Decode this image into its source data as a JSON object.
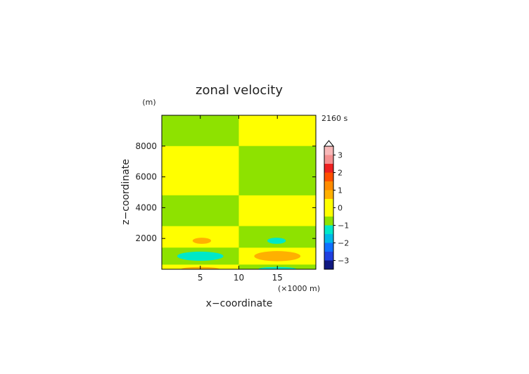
{
  "chart_data": {
    "type": "heatmap",
    "title": "zonal velocity",
    "xlabel": "x−coordinate",
    "ylabel": "z−coordinate",
    "x_unit": "(×1000 m)",
    "y_unit": "(m)",
    "time_label": "2160 s",
    "xlim": [
      0,
      20
    ],
    "ylim": [
      0,
      10000
    ],
    "x_ticks": [
      5,
      10,
      15
    ],
    "y_ticks": [
      2000,
      4000,
      6000,
      8000
    ],
    "x_tick_labels": [
      "5",
      "10",
      "15"
    ],
    "y_tick_labels": [
      "2000",
      "4000",
      "6000",
      "8000"
    ],
    "base_color": "#8ee200",
    "bands": [
      {
        "x": [
          0,
          10
        ],
        "z": [
          8000,
          10000
        ],
        "level": "green"
      },
      {
        "x": [
          0,
          10
        ],
        "z": [
          4800,
          8000
        ],
        "level": "yellow"
      },
      {
        "x": [
          0,
          10
        ],
        "z": [
          2800,
          4800
        ],
        "level": "green"
      },
      {
        "x": [
          0,
          10
        ],
        "z": [
          1400,
          2800
        ],
        "level": "yellow"
      },
      {
        "x": [
          0,
          10
        ],
        "z": [
          300,
          1400
        ],
        "level": "green"
      },
      {
        "x": [
          0,
          10
        ],
        "z": [
          0,
          300
        ],
        "level": "yellow"
      },
      {
        "x": [
          10,
          20
        ],
        "z": [
          8000,
          10000
        ],
        "level": "yellow"
      },
      {
        "x": [
          10,
          20
        ],
        "z": [
          4800,
          8000
        ],
        "level": "green"
      },
      {
        "x": [
          10,
          20
        ],
        "z": [
          2800,
          4800
        ],
        "level": "yellow"
      },
      {
        "x": [
          10,
          20
        ],
        "z": [
          1400,
          2800
        ],
        "level": "green"
      },
      {
        "x": [
          10,
          20
        ],
        "z": [
          300,
          1400
        ],
        "level": "yellow"
      },
      {
        "x": [
          10,
          20
        ],
        "z": [
          0,
          300
        ],
        "level": "green"
      }
    ],
    "blobs": [
      {
        "cx": 5.2,
        "cz": 1850,
        "rx": 1.2,
        "rz": 200,
        "level": "orange"
      },
      {
        "cx": 14.9,
        "cz": 1850,
        "rx": 1.2,
        "rz": 200,
        "level": "cyan"
      },
      {
        "cx": 5.0,
        "cz": 850,
        "rx": 3.0,
        "rz": 300,
        "level": "cyan"
      },
      {
        "cx": 15.0,
        "cz": 850,
        "rx": 3.0,
        "rz": 330,
        "level": "orange"
      },
      {
        "cx": 15.0,
        "cz": 0,
        "rx": 2.5,
        "rz": 150,
        "level": "cyan"
      },
      {
        "cx": 5.0,
        "cz": 0,
        "rx": 2.5,
        "rz": 150,
        "level": "orange"
      }
    ],
    "level_colors": {
      "green": "#8ee200",
      "yellow": "#ffff00",
      "orange": "#ffb000",
      "cyan": "#00e8c8"
    },
    "colorbar": {
      "tick_labels": [
        "3",
        "2",
        "1",
        "0",
        "−1",
        "−2",
        "−3"
      ],
      "tick_values": [
        3,
        2,
        1,
        0,
        -1,
        -2,
        -3
      ],
      "range": [
        -3.5,
        3.5
      ],
      "colors_top_to_bottom": [
        "#f8b8b8",
        "#f49090",
        "#ee2020",
        "#ff5000",
        "#ff8c00",
        "#ffb000",
        "#ffff00",
        "#ffff00",
        "#8ee200",
        "#00e8c8",
        "#00b8e8",
        "#1070ff",
        "#2040e0",
        "#101880"
      ]
    }
  }
}
